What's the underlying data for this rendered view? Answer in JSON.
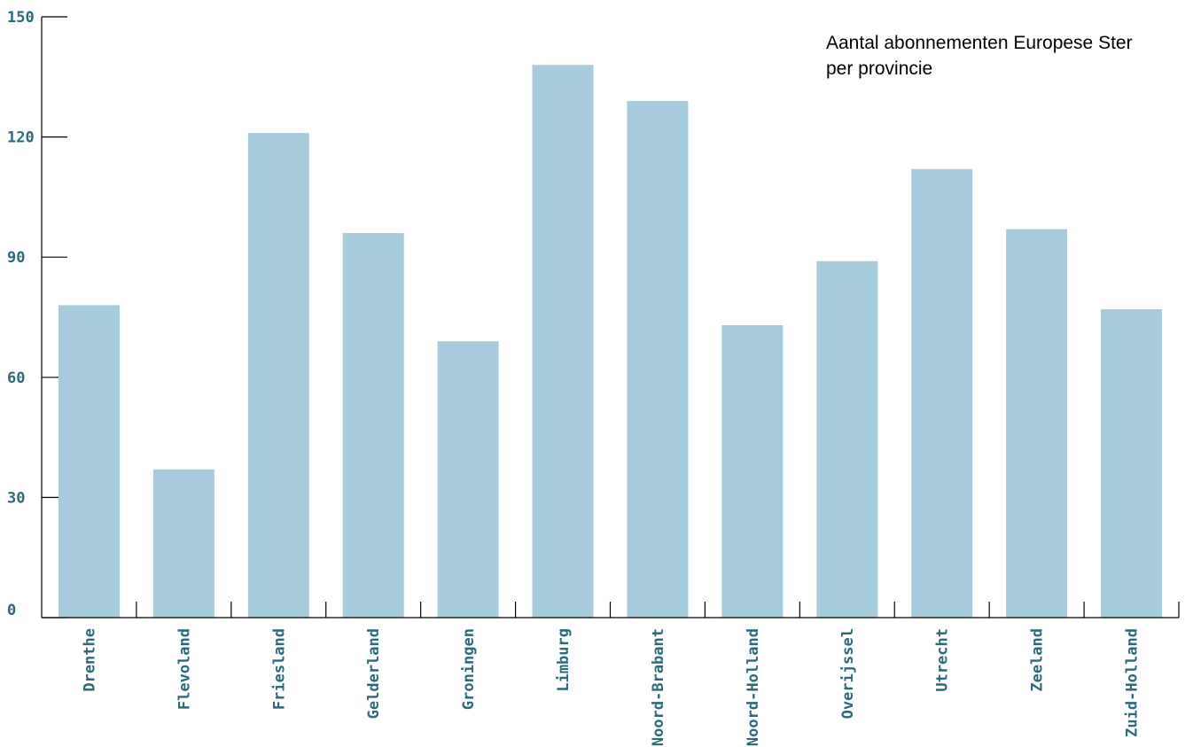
{
  "chart_data": {
    "type": "bar",
    "title_lines": [
      "Aantal abonnementen Europese Ster",
      "per provincie"
    ],
    "xlabel": "",
    "ylabel": "",
    "categories": [
      "Drenthe",
      "Flevoland",
      "Friesland",
      "Gelderland",
      "Groningen",
      "Limburg",
      "Noord-Brabant",
      "Noord-Holland",
      "Overijssel",
      "Utrecht",
      "Zeeland",
      "Zuid-Holland"
    ],
    "values": [
      78,
      37,
      121,
      96,
      69,
      138,
      129,
      73,
      89,
      112,
      97,
      77
    ],
    "ylim": [
      0,
      150
    ],
    "yticks": [
      0,
      30,
      60,
      90,
      120,
      150
    ],
    "grid": false,
    "bar_color": "#a6cbdc",
    "label_color": "#2c6a7a"
  }
}
